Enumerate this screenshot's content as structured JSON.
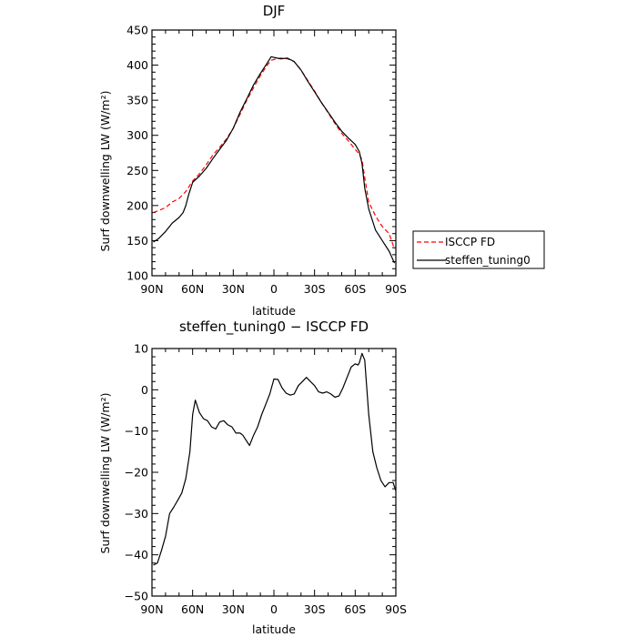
{
  "chart_data": [
    {
      "type": "line",
      "title": "DJF",
      "xlabel": "latitude",
      "ylabel": "Surf downwelling LW (W/m²)",
      "xlim": [
        90,
        -90
      ],
      "ylim": [
        100,
        450
      ],
      "yticks": [
        100,
        150,
        200,
        250,
        300,
        350,
        400,
        450
      ],
      "xticks": [
        90,
        60,
        30,
        0,
        -30,
        -60,
        -90
      ],
      "xtick_labels": [
        "90N",
        "60N",
        "30N",
        "0",
        "30S",
        "60S",
        "90S"
      ],
      "legend_position": "right",
      "series": [
        {
          "name": "ISCCP FD",
          "color": "#ff0000",
          "dash": "dashed",
          "x": [
            89,
            85,
            80,
            75,
            70,
            65,
            60,
            55,
            50,
            45,
            40,
            35,
            30,
            25,
            20,
            15,
            10,
            5,
            2,
            0,
            -5,
            -10,
            -15,
            -20,
            -25,
            -30,
            -35,
            -40,
            -45,
            -50,
            -55,
            -60,
            -63,
            -65,
            -67,
            -70,
            -75,
            -80,
            -85,
            -89
          ],
          "y": [
            190,
            193,
            197,
            205,
            210,
            220,
            235,
            245,
            258,
            272,
            283,
            295,
            310,
            330,
            350,
            368,
            385,
            400,
            407,
            408,
            410,
            409,
            405,
            393,
            378,
            363,
            347,
            332,
            317,
            303,
            292,
            280,
            273,
            265,
            240,
            205,
            185,
            170,
            160,
            138
          ]
        },
        {
          "name": "steffen_tuning0",
          "color": "#000000",
          "dash": "solid",
          "x": [
            89,
            85,
            80,
            75,
            70,
            67,
            65,
            63,
            60,
            55,
            50,
            45,
            40,
            35,
            30,
            25,
            20,
            15,
            10,
            5,
            2,
            0,
            -5,
            -10,
            -15,
            -20,
            -25,
            -30,
            -35,
            -40,
            -45,
            -50,
            -55,
            -60,
            -63,
            -65,
            -67,
            -70,
            -75,
            -80,
            -85,
            -89
          ],
          "y": [
            148,
            153,
            163,
            175,
            183,
            190,
            200,
            215,
            233,
            242,
            253,
            267,
            280,
            293,
            310,
            333,
            352,
            372,
            388,
            403,
            412,
            411,
            409,
            410,
            405,
            393,
            377,
            362,
            347,
            333,
            319,
            306,
            296,
            287,
            277,
            260,
            225,
            195,
            165,
            150,
            135,
            118
          ]
        }
      ]
    },
    {
      "type": "line",
      "title": "steffen_tuning0 − ISCCP FD",
      "xlabel": "latitude",
      "ylabel": "Surf downwelling LW (W/m²)",
      "xlim": [
        90,
        -90
      ],
      "ylim": [
        -50,
        10
      ],
      "yticks": [
        -50,
        -40,
        -30,
        -20,
        -10,
        0,
        10
      ],
      "ytick_labels": [
        "−50",
        "−40",
        "−30",
        "−20",
        "−10",
        "0",
        "10"
      ],
      "xticks": [
        90,
        60,
        30,
        0,
        -30,
        -60,
        -90
      ],
      "xtick_labels": [
        "90N",
        "60N",
        "30N",
        "0",
        "30S",
        "60S",
        "90S"
      ],
      "series": [
        {
          "color": "#000000",
          "x": [
            89,
            86,
            83,
            80,
            77,
            74,
            71,
            68,
            65,
            62,
            60,
            58,
            55,
            52,
            49,
            46,
            43,
            40,
            37,
            34,
            31,
            28,
            25,
            23,
            21,
            18,
            15,
            12,
            9,
            6,
            3,
            0,
            -3,
            -6,
            -9,
            -12,
            -15,
            -18,
            -21,
            -24,
            -27,
            -30,
            -33,
            -36,
            -39,
            -42,
            -45,
            -48,
            -51,
            -54,
            -57,
            -60,
            -62,
            -63,
            -65,
            -67,
            -70,
            -73,
            -76,
            -79,
            -82,
            -85,
            -88,
            -90
          ],
          "y": [
            -42.5,
            -42,
            -39,
            -35.5,
            -30,
            -28.5,
            -26.8,
            -25,
            -21.5,
            -15,
            -6,
            -2.5,
            -5.5,
            -7,
            -7.5,
            -9,
            -9.5,
            -7.8,
            -7.5,
            -8.5,
            -9,
            -10.5,
            -10.5,
            -11,
            -12,
            -13.5,
            -11,
            -9,
            -6,
            -3.5,
            -1,
            2.6,
            2.5,
            0.5,
            -0.8,
            -1.3,
            -1,
            1,
            2,
            3,
            2,
            1,
            -0.5,
            -0.8,
            -0.5,
            -1,
            -1.8,
            -1.5,
            0.5,
            3,
            5.5,
            6.3,
            6,
            6.5,
            8.8,
            7.2,
            -6,
            -15,
            -19,
            -22,
            -23.5,
            -22.5,
            -22.5,
            -24.5
          ]
        }
      ]
    }
  ]
}
